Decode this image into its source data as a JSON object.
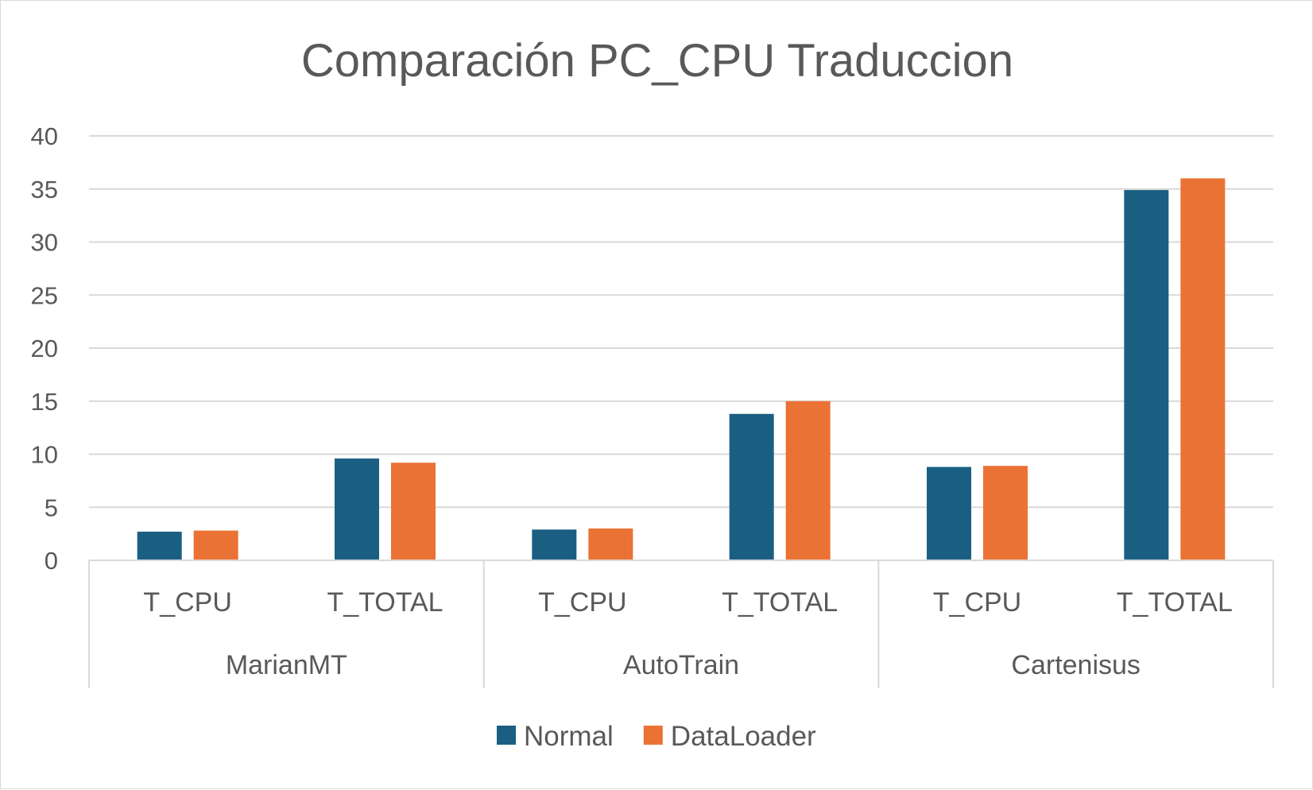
{
  "chart_data": {
    "type": "bar",
    "title": "Comparación PC_CPU Traduccion",
    "xlabel": "",
    "ylabel": "",
    "ylim": [
      0,
      40
    ],
    "yticks": [
      0,
      5,
      10,
      15,
      20,
      25,
      30,
      35,
      40
    ],
    "grid": true,
    "legend_position": "bottom",
    "groups": [
      {
        "label": "MarianMT",
        "categories": [
          "T_CPU",
          "T_TOTAL"
        ]
      },
      {
        "label": "AutoTrain",
        "categories": [
          "T_CPU",
          "T_TOTAL"
        ]
      },
      {
        "label": "Cartenisus",
        "categories": [
          "T_CPU",
          "T_TOTAL"
        ]
      }
    ],
    "categories": [
      "T_CPU",
      "T_TOTAL",
      "T_CPU",
      "T_TOTAL",
      "T_CPU",
      "T_TOTAL"
    ],
    "series": [
      {
        "name": "Normal",
        "color": "#1a5f82",
        "values": [
          2.7,
          9.6,
          2.9,
          13.8,
          8.8,
          34.9
        ]
      },
      {
        "name": "DataLoader",
        "color": "#ea7235",
        "values": [
          2.8,
          9.2,
          3.0,
          15.0,
          8.9,
          36.0
        ]
      }
    ]
  }
}
